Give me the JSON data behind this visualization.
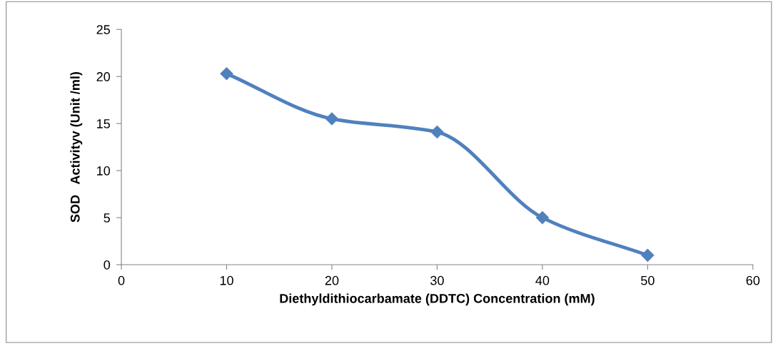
{
  "chart_data": {
    "type": "line",
    "xlabel": "Diethyldithiocarbamate (DDTC) Concentration (mM)",
    "ylabel": "SOD   Activityv (Unit /ml)",
    "x": [
      10,
      20,
      30,
      40,
      50
    ],
    "series": [
      {
        "color": "#4f81bd",
        "values": [
          20.3,
          15.5,
          14.1,
          5.0,
          1.0
        ]
      }
    ],
    "xlim": [
      0,
      60
    ],
    "xticks": [
      0,
      10,
      20,
      30,
      40,
      50,
      60
    ],
    "ylim": [
      0,
      25
    ],
    "yticks": [
      0,
      5,
      10,
      15,
      20,
      25
    ],
    "grid": false,
    "legend": false,
    "marker": "diamond",
    "line_style": "solid"
  }
}
